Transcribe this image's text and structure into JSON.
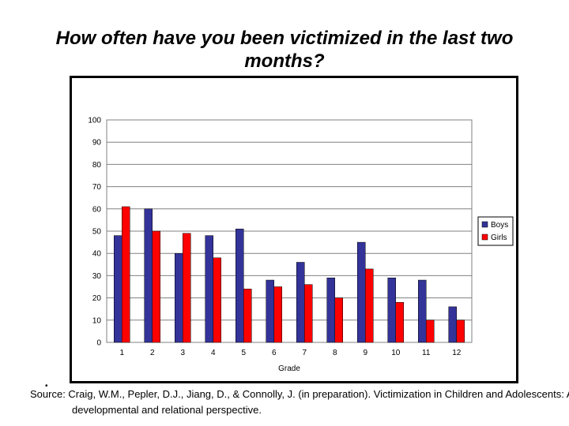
{
  "slide": {
    "title": "How often have you been victimized in the last two months?",
    "source": "Source: Craig, W.M., Pepler, D.J., Jiang, D., & Connolly, J. (in preparation). Victimization in Children and Adolescents: A developmental and relational perspective."
  },
  "chart_data": {
    "type": "bar",
    "title": "",
    "xlabel": "Grade",
    "ylabel": "",
    "ylim": [
      0,
      100
    ],
    "yticks": [
      0,
      10,
      20,
      30,
      40,
      50,
      60,
      70,
      80,
      90,
      100
    ],
    "grid": true,
    "legend_position": "right",
    "categories": [
      "1",
      "2",
      "3",
      "4",
      "5",
      "6",
      "7",
      "8",
      "9",
      "10",
      "11",
      "12"
    ],
    "series": [
      {
        "name": "Boys",
        "color": "#333399",
        "values": [
          48,
          60,
          40,
          48,
          51,
          28,
          36,
          29,
          45,
          29,
          28,
          16
        ]
      },
      {
        "name": "Girls",
        "color": "#ff0000",
        "values": [
          61,
          50,
          49,
          38,
          24,
          25,
          26,
          20,
          33,
          18,
          10,
          10
        ]
      }
    ]
  }
}
